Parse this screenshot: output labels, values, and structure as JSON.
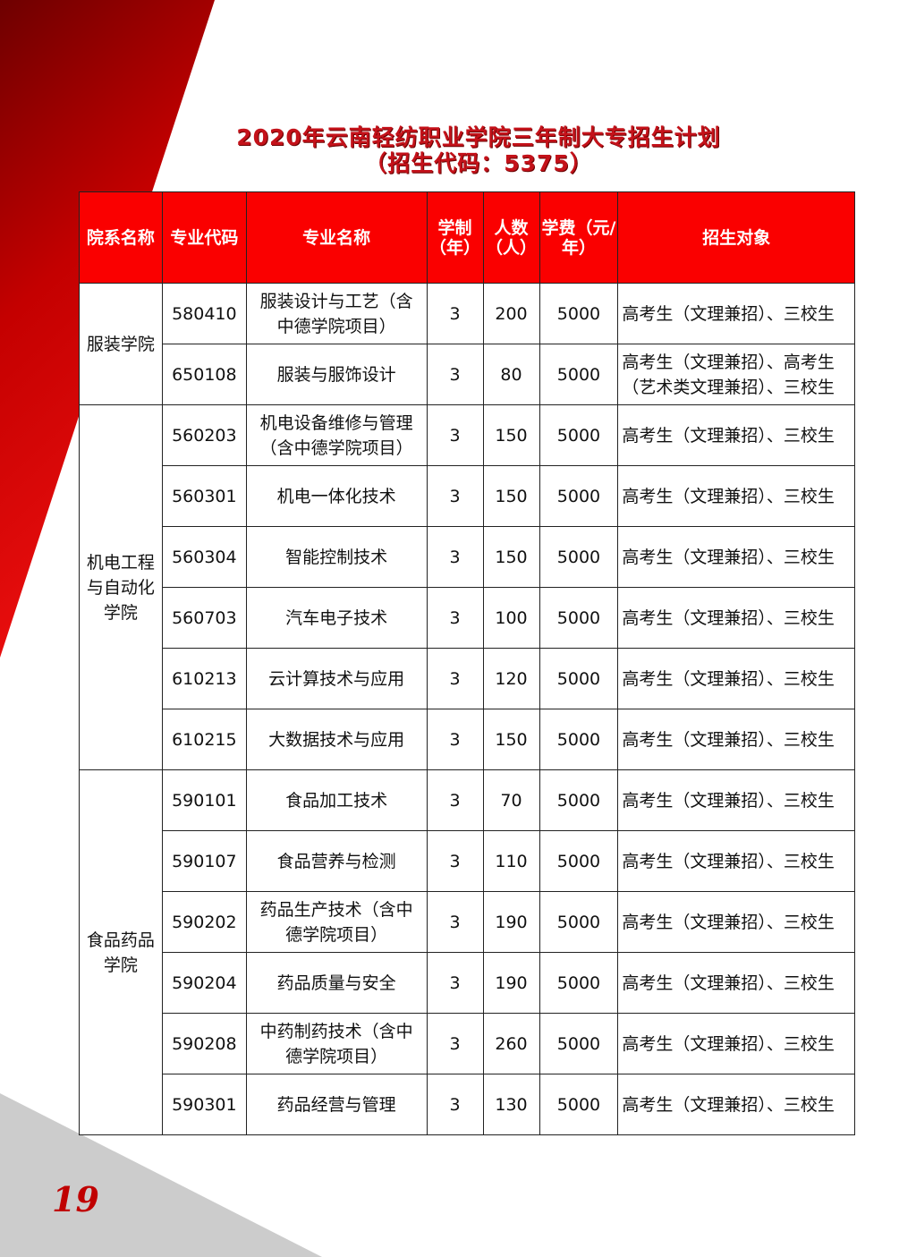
{
  "title": {
    "line1": "2020年云南轻纺职业学院三年制大专招生计划",
    "line2": "（招生代码：5375）"
  },
  "colors": {
    "accent": "#fa0000",
    "title": "#c4121a",
    "dark_red": "#7a0000",
    "gray": "#cccccc"
  },
  "table": {
    "headers": [
      "院系名称",
      "专业代码",
      "专业名称",
      "学制（年）",
      "人数（人）",
      "学费（元/年）",
      "招生对象"
    ],
    "groups": [
      {
        "department": "服装学院",
        "rows": [
          {
            "code": "580410",
            "name": "服装设计与工艺（含中德学院项目）",
            "years": "3",
            "count": "200",
            "fee": "5000",
            "target": "高考生（文理兼招）、三校生"
          },
          {
            "code": "650108",
            "name": "服装与服饰设计",
            "years": "3",
            "count": "80",
            "fee": "5000",
            "target": "高考生（文理兼招）、高考生（艺术类文理兼招）、三校生"
          }
        ]
      },
      {
        "department": "机电工程与自动化学院",
        "rows": [
          {
            "code": "560203",
            "name": "机电设备维修与管理（含中德学院项目）",
            "years": "3",
            "count": "150",
            "fee": "5000",
            "target": "高考生（文理兼招）、三校生"
          },
          {
            "code": "560301",
            "name": "机电一体化技术",
            "years": "3",
            "count": "150",
            "fee": "5000",
            "target": "高考生（文理兼招）、三校生"
          },
          {
            "code": "560304",
            "name": "智能控制技术",
            "years": "3",
            "count": "150",
            "fee": "5000",
            "target": "高考生（文理兼招）、三校生"
          },
          {
            "code": "560703",
            "name": "汽车电子技术",
            "years": "3",
            "count": "100",
            "fee": "5000",
            "target": "高考生（文理兼招）、三校生"
          },
          {
            "code": "610213",
            "name": "云计算技术与应用",
            "years": "3",
            "count": "120",
            "fee": "5000",
            "target": "高考生（文理兼招）、三校生"
          },
          {
            "code": "610215",
            "name": "大数据技术与应用",
            "years": "3",
            "count": "150",
            "fee": "5000",
            "target": "高考生（文理兼招）、三校生"
          }
        ]
      },
      {
        "department": "食品药品学院",
        "rows": [
          {
            "code": "590101",
            "name": "食品加工技术",
            "years": "3",
            "count": "70",
            "fee": "5000",
            "target": "高考生（文理兼招）、三校生"
          },
          {
            "code": "590107",
            "name": "食品营养与检测",
            "years": "3",
            "count": "110",
            "fee": "5000",
            "target": "高考生（文理兼招）、三校生"
          },
          {
            "code": "590202",
            "name": "药品生产技术（含中德学院项目）",
            "years": "3",
            "count": "190",
            "fee": "5000",
            "target": "高考生（文理兼招）、三校生"
          },
          {
            "code": "590204",
            "name": "药品质量与安全",
            "years": "3",
            "count": "190",
            "fee": "5000",
            "target": "高考生（文理兼招）、三校生"
          },
          {
            "code": "590208",
            "name": "中药制药技术（含中德学院项目）",
            "years": "3",
            "count": "260",
            "fee": "5000",
            "target": "高考生（文理兼招）、三校生"
          },
          {
            "code": "590301",
            "name": "药品经营与管理",
            "years": "3",
            "count": "130",
            "fee": "5000",
            "target": "高考生（文理兼招）、三校生"
          }
        ]
      }
    ]
  },
  "page_number": "19"
}
